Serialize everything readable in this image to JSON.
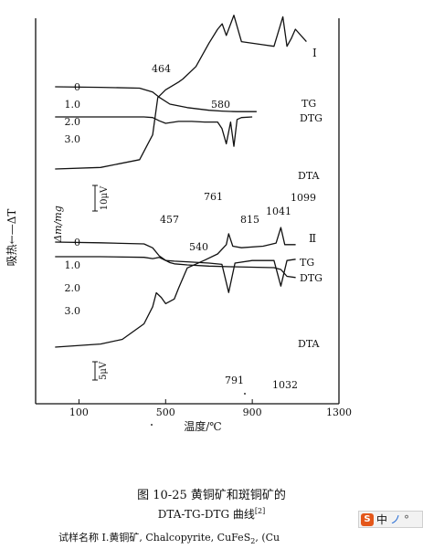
{
  "figure": {
    "caption_line1": "图 10-25  黄铜矿和斑铜矿的",
    "caption_line2": "DTA-TG-DTG 曲线",
    "caption_ref": "[2]",
    "bottom_text": "试样名称  Ⅰ.黄铜矿, Chalcopyrite, CuFeS",
    "bottom_sub": "2",
    "bottom_tail": ",  (Cu",
    "ime": {
      "label1": "中",
      "label2": "ノ",
      "label3": "°"
    }
  },
  "chart_data": {
    "type": "line",
    "xlabel": "温度/℃",
    "ylabel_outer": "吸热←—ΔT",
    "ylabel_inner": "Δm/mg",
    "x_ticks": [
      "100",
      "500",
      "900",
      "1300"
    ],
    "xlim": [
      -100,
      1300
    ],
    "panels": [
      {
        "id": "I",
        "label": "Ⅰ",
        "tg_ticks": [
          "0",
          "1.0",
          "2.0",
          "3.0"
        ],
        "scale_label": "10μV",
        "series": [
          {
            "name": "TG",
            "x": [
              -10,
              200,
              380,
              440,
              470,
              520,
              600,
              700,
              760,
              800,
              830,
              870,
              920
            ],
            "y": [
              0,
              0.03,
              0.08,
              0.3,
              0.6,
              1.0,
              1.2,
              1.35,
              1.4,
              1.42,
              1.43,
              1.43,
              1.43
            ]
          },
          {
            "name": "DTG",
            "x": [
              -10,
              200,
              400,
              440,
              470,
              500,
              560,
              620,
              680,
              740,
              760,
              780,
              800,
              815,
              830,
              850,
              900
            ],
            "y": [
              0,
              0,
              0,
              0.05,
              0.3,
              0.5,
              0.35,
              0.35,
              0.4,
              0.4,
              0.9,
              2.1,
              0.4,
              2.3,
              0.2,
              0.05,
              0
            ]
          },
          {
            "name": "DTA",
            "x": [
              -10,
              200,
              380,
              440,
              464,
              500,
              560,
              580,
              640,
              700,
              740,
              761,
              780,
              815,
              850,
              950,
              1000,
              1041,
              1060,
              1080,
              1099,
              1150
            ],
            "y": [
              0,
              0.1,
              0.6,
              2.2,
              4.6,
              5.1,
              5.6,
              5.8,
              6.6,
              8.1,
              9.0,
              9.35,
              8.6,
              9.9,
              8.2,
              8.0,
              7.9,
              9.8,
              7.9,
              8.4,
              9.0,
              8.2
            ]
          }
        ],
        "annotations": [
          "464",
          "580",
          "761",
          "815",
          "1041",
          "1099"
        ]
      },
      {
        "id": "II",
        "label": "Ⅱ",
        "tg_ticks": [
          "0",
          "1.0",
          "2.0",
          "3.0"
        ],
        "scale_label": "5μV",
        "series": [
          {
            "name": "TG",
            "x": [
              -10,
              200,
              400,
              440,
              470,
              500,
              520,
              540,
              600,
              700,
              800,
              900,
              1000,
              1032,
              1060,
              1100
            ],
            "y": [
              0,
              0.03,
              0.08,
              0.25,
              0.6,
              0.8,
              0.9,
              0.95,
              1.0,
              1.05,
              1.08,
              1.1,
              1.12,
              1.2,
              1.5,
              1.55
            ]
          },
          {
            "name": "DTG",
            "x": [
              -10,
              200,
              400,
              440,
              457,
              470,
              500,
              540,
              600,
              700,
              760,
              791,
              820,
              900,
              1000,
              1032,
              1060,
              1100
            ],
            "y": [
              0,
              0,
              0.05,
              0.15,
              0.1,
              0.05,
              0.3,
              0.35,
              0.4,
              0.5,
              0.6,
              2.8,
              0.5,
              0.3,
              0.3,
              2.3,
              0.3,
              0.2
            ]
          },
          {
            "name": "DTA",
            "x": [
              -10,
              200,
              300,
              400,
              440,
              457,
              480,
              500,
              540,
              560,
              600,
              680,
              740,
              780,
              791,
              810,
              850,
              950,
              1010,
              1032,
              1050,
              1100
            ],
            "y": [
              0,
              0.2,
              0.5,
              1.5,
              2.6,
              3.5,
              3.2,
              2.8,
              3.1,
              3.8,
              5.1,
              5.6,
              6.0,
              6.6,
              7.3,
              6.5,
              6.4,
              6.5,
              6.7,
              7.7,
              6.6,
              6.6
            ]
          }
        ],
        "annotations": [
          "457",
          "540",
          "791",
          "1032"
        ]
      }
    ],
    "legend": [
      "TG",
      "DTG",
      "DTA"
    ],
    "grid": false
  }
}
